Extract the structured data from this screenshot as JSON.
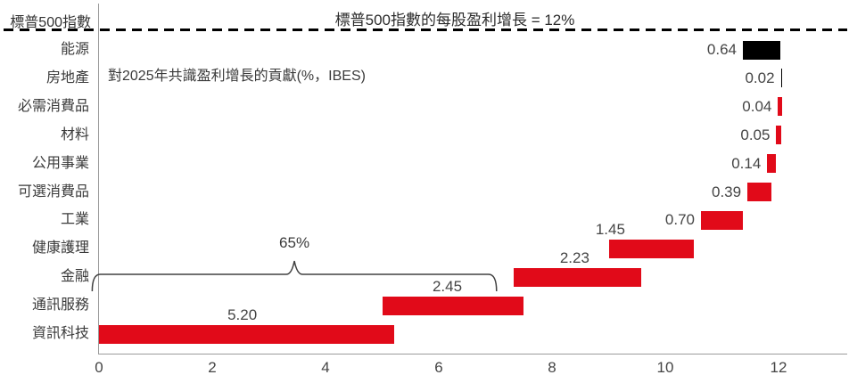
{
  "header": {
    "index_label": "標普500指數",
    "title": "標普500指數的每股盈利增長 = 12%"
  },
  "annotation": "對2025年共識盈利增長的貢獻(%，IBES)",
  "bracket": {
    "label": "65%",
    "from": -0.12,
    "to": 7.02
  },
  "colors": {
    "red": "#e10a19",
    "black": "#000000",
    "axis": "#9b9b9b",
    "text": "#3d3d3d"
  },
  "chart_data": {
    "type": "bar",
    "subtype": "horizontal_waterfall",
    "title": "標普500指數的每股盈利增長 = 12%",
    "axis_total_label": "標普500指數",
    "total_eps_growth": "12%",
    "xlabel": "",
    "ylabel": "",
    "x_ticks": [
      0,
      2,
      4,
      6,
      8,
      10,
      12
    ],
    "xlim": [
      0,
      13.2
    ],
    "grid": false,
    "legend": false,
    "categories": [
      "能源",
      "房地產",
      "必需消費品",
      "材料",
      "公用事業",
      "可選消費品",
      "工業",
      "健康護理",
      "金融",
      "通訊服務",
      "資訊科技"
    ],
    "values": [
      0.64,
      0.02,
      0.04,
      0.05,
      0.14,
      0.39,
      0.7,
      1.45,
      2.23,
      2.45,
      5.2
    ],
    "bars": [
      {
        "label": "能源",
        "display_value": "0.64",
        "value": 0.64,
        "start": 11.37,
        "end": 12.03,
        "color": "black",
        "label_pos": "left"
      },
      {
        "label": "房地產",
        "display_value": "0.02",
        "value": 0.02,
        "start": 12.04,
        "end": 12.07,
        "color": "black",
        "label_pos": "left"
      },
      {
        "label": "必需消費品",
        "display_value": "0.04",
        "value": 0.04,
        "start": 11.99,
        "end": 12.06,
        "color": "red",
        "label_pos": "left"
      },
      {
        "label": "材料",
        "display_value": "0.05",
        "value": 0.05,
        "start": 11.96,
        "end": 12.04,
        "color": "red",
        "label_pos": "left"
      },
      {
        "label": "公用事業",
        "display_value": "0.14",
        "value": 0.14,
        "start": 11.8,
        "end": 11.96,
        "color": "red",
        "label_pos": "left"
      },
      {
        "label": "可選消費品",
        "display_value": "0.39",
        "value": 0.39,
        "start": 11.45,
        "end": 11.87,
        "color": "red",
        "label_pos": "left"
      },
      {
        "label": "工業",
        "display_value": "0.70",
        "value": 0.7,
        "start": 10.63,
        "end": 11.37,
        "color": "red",
        "label_pos": "left"
      },
      {
        "label": "健康護理",
        "display_value": "1.45",
        "value": 1.45,
        "start": 9.01,
        "end": 10.5,
        "color": "red",
        "label_pos": "above",
        "label_x": 9.03
      },
      {
        "label": "金融",
        "display_value": "2.23",
        "value": 2.23,
        "start": 7.33,
        "end": 9.58,
        "color": "red",
        "label_pos": "above",
        "label_x": 8.4
      },
      {
        "label": "通訊服務",
        "display_value": "2.45",
        "value": 2.45,
        "start": 5.01,
        "end": 7.5,
        "color": "red",
        "label_pos": "above",
        "label_x": 6.15
      },
      {
        "label": "資訊科技",
        "display_value": "5.20",
        "value": 5.2,
        "start": 0.0,
        "end": 5.22,
        "color": "red",
        "label_pos": "above",
        "label_x": 2.53
      }
    ]
  }
}
